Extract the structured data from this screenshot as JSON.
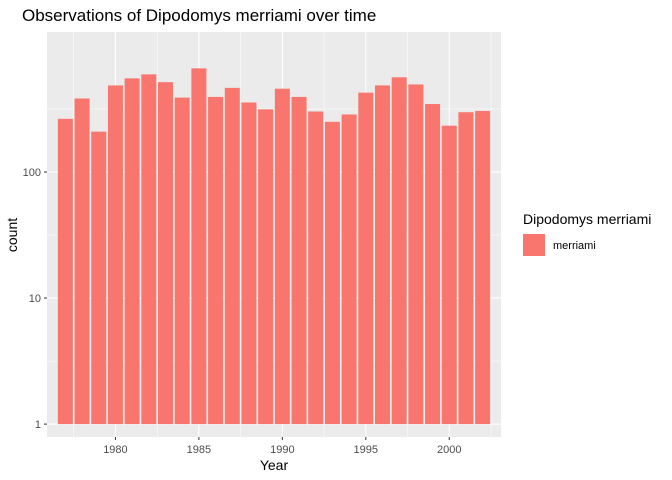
{
  "chart_data": {
    "type": "bar",
    "title": "Observations of Dipodomys merriami over time",
    "xlabel": "Year",
    "ylabel": "count",
    "y_scale": "log10",
    "ylim": [
      0.79,
      1290
    ],
    "xlim": [
      1975.9,
      2003.1
    ],
    "x_ticks": [
      1980,
      1985,
      1990,
      1995,
      2000
    ],
    "y_ticks": [
      1,
      10,
      100
    ],
    "y_tick_labels": [
      "1",
      "10",
      "100"
    ],
    "grid": true,
    "legend": {
      "title": "Dipodomys merriami",
      "position": "right",
      "entries": [
        "merriami"
      ]
    },
    "series": [
      {
        "name": "merriami",
        "color": "#f8766d",
        "x": [
          1977,
          1978,
          1979,
          1980,
          1981,
          1982,
          1983,
          1984,
          1985,
          1986,
          1987,
          1988,
          1989,
          1990,
          1991,
          1992,
          1993,
          1994,
          1995,
          1996,
          1997,
          1998,
          1999,
          2000,
          2001,
          2002
        ],
        "values": [
          264,
          383,
          209,
          486,
          553,
          595,
          516,
          389,
          664,
          394,
          465,
          356,
          314,
          458,
          394,
          302,
          250,
          286,
          426,
          486,
          564,
          495,
          346,
          233,
          298,
          305
        ]
      }
    ]
  }
}
